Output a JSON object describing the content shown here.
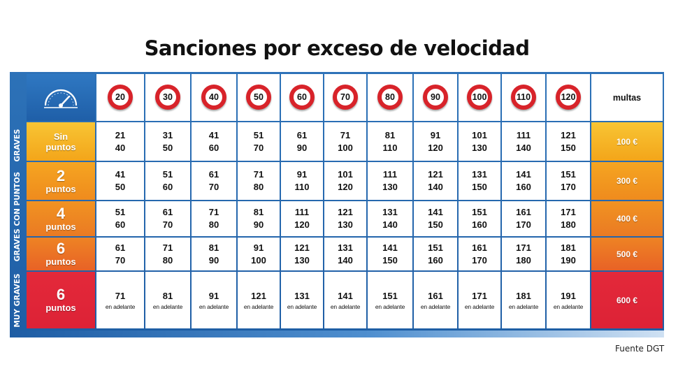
{
  "title": "Sanciones por exceso de velocidad",
  "source": "Fuente DGT",
  "colors": {
    "board_blue": "#1e5da4",
    "sign_red": "#d8232a",
    "row_colors": [
      "#f6b51c",
      "#f2981e",
      "#ee8521",
      "#ea6b25",
      "#e2263a"
    ]
  },
  "chart_data": {
    "type": "table",
    "title": "Sanciones por exceso de velocidad",
    "group_labels": [
      "GRAVES",
      "GRAVES CON PUNTOS",
      "MUY GRAVES"
    ],
    "speed_limits": [
      "20",
      "30",
      "40",
      "50",
      "60",
      "70",
      "80",
      "90",
      "100",
      "110",
      "120"
    ],
    "fines_header": "multas",
    "rows": [
      {
        "points_top": "Sin",
        "points_bottom": "puntos",
        "fine": "100 €",
        "cells": [
          [
            "21",
            "40"
          ],
          [
            "31",
            "50"
          ],
          [
            "41",
            "60"
          ],
          [
            "51",
            "70"
          ],
          [
            "61",
            "90"
          ],
          [
            "71",
            "100"
          ],
          [
            "81",
            "110"
          ],
          [
            "91",
            "120"
          ],
          [
            "101",
            "130"
          ],
          [
            "111",
            "140"
          ],
          [
            "121",
            "150"
          ]
        ]
      },
      {
        "points_top": "2",
        "points_bottom": "puntos",
        "fine": "300 €",
        "cells": [
          [
            "41",
            "50"
          ],
          [
            "51",
            "60"
          ],
          [
            "61",
            "70"
          ],
          [
            "71",
            "80"
          ],
          [
            "91",
            "110"
          ],
          [
            "101",
            "120"
          ],
          [
            "111",
            "130"
          ],
          [
            "121",
            "140"
          ],
          [
            "131",
            "150"
          ],
          [
            "141",
            "160"
          ],
          [
            "151",
            "170"
          ]
        ]
      },
      {
        "points_top": "4",
        "points_bottom": "puntos",
        "fine": "400 €",
        "cells": [
          [
            "51",
            "60"
          ],
          [
            "61",
            "70"
          ],
          [
            "71",
            "80"
          ],
          [
            "81",
            "90"
          ],
          [
            "111",
            "120"
          ],
          [
            "121",
            "130"
          ],
          [
            "131",
            "140"
          ],
          [
            "141",
            "150"
          ],
          [
            "151",
            "160"
          ],
          [
            "161",
            "170"
          ],
          [
            "171",
            "180"
          ]
        ]
      },
      {
        "points_top": "6",
        "points_bottom": "puntos",
        "fine": "500 €",
        "cells": [
          [
            "61",
            "70"
          ],
          [
            "71",
            "80"
          ],
          [
            "81",
            "90"
          ],
          [
            "91",
            "100"
          ],
          [
            "121",
            "130"
          ],
          [
            "131",
            "140"
          ],
          [
            "141",
            "150"
          ],
          [
            "151",
            "160"
          ],
          [
            "161",
            "170"
          ],
          [
            "171",
            "180"
          ],
          [
            "181",
            "190"
          ]
        ]
      },
      {
        "points_top": "6",
        "points_bottom": "puntos",
        "fine": "600 €",
        "cells": [
          [
            "71",
            "en adelante"
          ],
          [
            "81",
            "en adelante"
          ],
          [
            "91",
            "en adelante"
          ],
          [
            "121",
            "en adelante"
          ],
          [
            "131",
            "en adelante"
          ],
          [
            "141",
            "en adelante"
          ],
          [
            "151",
            "en adelante"
          ],
          [
            "161",
            "en adelante"
          ],
          [
            "171",
            "en adelante"
          ],
          [
            "181",
            "en adelante"
          ],
          [
            "191",
            "en adelante"
          ]
        ]
      }
    ]
  },
  "icons": {
    "gauge": "speedometer-icon"
  }
}
